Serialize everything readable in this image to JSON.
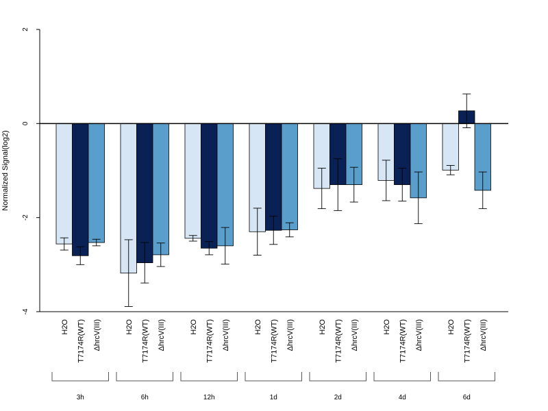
{
  "chart_data": {
    "type": "bar",
    "ylabel": "Normalized Signal(log2)",
    "ylim": [
      -4,
      2
    ],
    "yticks": [
      2,
      0,
      -2,
      -4
    ],
    "groups": [
      "3h",
      "6h",
      "12h",
      "1d",
      "2d",
      "4d",
      "6d"
    ],
    "categories": [
      "H2O",
      "T7174R(WT)",
      "ΔhrcV(III)"
    ],
    "colors": [
      "#d6e6f5",
      "#0a2156",
      "#5a9ecc"
    ],
    "values": [
      [
        -2.56,
        -2.81,
        -2.53
      ],
      [
        -3.18,
        -2.96,
        -2.79
      ],
      [
        -2.44,
        -2.65,
        -2.6
      ],
      [
        -2.3,
        -2.27,
        -2.26
      ],
      [
        -1.38,
        -1.3,
        -1.3
      ],
      [
        -1.21,
        -1.3,
        -1.58
      ],
      [
        -0.99,
        0.27,
        -1.42
      ]
    ],
    "errors": [
      [
        0.13,
        0.19,
        0.07
      ],
      [
        0.71,
        0.43,
        0.25
      ],
      [
        0.06,
        0.14,
        0.39
      ],
      [
        0.5,
        0.3,
        0.15
      ],
      [
        0.43,
        0.55,
        0.37
      ],
      [
        0.43,
        0.35,
        0.55
      ],
      [
        0.1,
        0.36,
        0.39
      ]
    ],
    "grid": false,
    "legend": "none"
  }
}
